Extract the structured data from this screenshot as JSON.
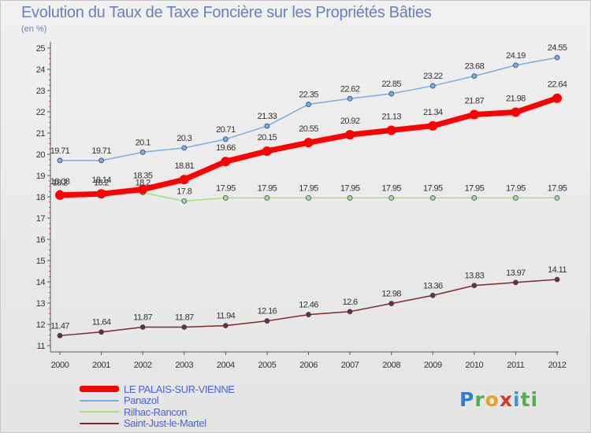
{
  "title": "Evolution du Taux de Taxe Foncière sur les Propriétés Bâties",
  "unit_label": "(en %)",
  "logo": {
    "text": "Proxiti"
  },
  "chart_data": {
    "type": "line",
    "x": [
      "2000",
      "2001",
      "2002",
      "2003",
      "2004",
      "2005",
      "2006",
      "2007",
      "2008",
      "2009",
      "2010",
      "2011",
      "2012"
    ],
    "ylim": [
      11,
      25
    ],
    "yticks": [
      11,
      12,
      13,
      14,
      15,
      16,
      17,
      18,
      19,
      20,
      21,
      22,
      23,
      24,
      25
    ],
    "grid": false,
    "legend_position": "bottom-left",
    "series": [
      {
        "name": "LE PALAIS-SUR-VIENNE",
        "color": "#ff0000",
        "width": 7,
        "marker": 6,
        "values": [
          18.08,
          18.14,
          18.35,
          18.81,
          19.66,
          20.15,
          20.55,
          20.92,
          21.13,
          21.34,
          21.87,
          21.98,
          22.64
        ],
        "labels": [
          "18.08",
          "18.14",
          "18.35",
          "18.81",
          "19.66",
          "20.15",
          "20.55",
          "20.92",
          "21.13",
          "21.34",
          "21.87",
          "21.98",
          "22.64"
        ]
      },
      {
        "name": "Panazol",
        "color": "#7aaee0",
        "width": 1.5,
        "marker": 3,
        "values": [
          19.71,
          19.71,
          20.1,
          20.3,
          20.71,
          21.33,
          22.35,
          22.62,
          22.85,
          23.22,
          23.68,
          24.19,
          24.55
        ],
        "labels": [
          "19.71",
          "19.71",
          "20.1",
          "20.3",
          "20.71",
          "21.33",
          "22.35",
          "22.62",
          "22.85",
          "23.22",
          "23.68",
          "24.19",
          "24.55"
        ]
      },
      {
        "name": "Rilhac-Rancon",
        "color": "#a6e07a",
        "width": 1.5,
        "marker": 3,
        "values": [
          18.2,
          18.2,
          18.2,
          17.8,
          17.95,
          17.95,
          17.95,
          17.95,
          17.95,
          17.95,
          17.95,
          17.95,
          17.95
        ],
        "labels": [
          "18.2",
          "18.2",
          "18.2",
          "17.8",
          "17.95",
          "17.95",
          "17.95",
          "17.95",
          "17.95",
          "17.95",
          "17.95",
          "17.95",
          "17.95"
        ]
      },
      {
        "name": "Saint-Just-le-Martel",
        "color": "#7a2a2a",
        "width": 1.5,
        "marker": 3,
        "values": [
          11.47,
          11.64,
          11.87,
          11.87,
          11.94,
          12.16,
          12.46,
          12.6,
          12.98,
          13.36,
          13.83,
          13.97,
          14.11
        ],
        "labels": [
          "11.47",
          "11.64",
          "11.87",
          "11.87",
          "11.94",
          "12.16",
          "12.46",
          "12.6",
          "12.98",
          "13.36",
          "13.83",
          "13.97",
          "14.11"
        ]
      }
    ]
  }
}
